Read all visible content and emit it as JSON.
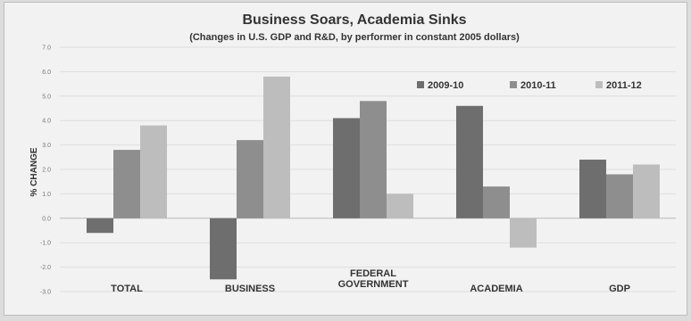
{
  "chart_data": {
    "type": "bar",
    "title": "Business Soars, Academia Sinks",
    "subtitle": "(Changes in U.S. GDP and R&D, by performer in constant 2005 dollars)",
    "ylabel": "% CHANGE",
    "xlabel": "",
    "ylim": [
      -3.0,
      7.0
    ],
    "yticks": [
      "7.0",
      "6.0",
      "5.0",
      "4.0",
      "3.0",
      "2.0",
      "1.0",
      "0.0",
      "-1.0",
      "-2.0",
      "-3.0"
    ],
    "categories": [
      "TOTAL",
      "BUSINESS",
      "FEDERAL GOVERNMENT",
      "ACADEMIA",
      "GDP"
    ],
    "series": [
      {
        "name": "2009-10",
        "color": "#6e6e6e",
        "values": [
          -0.6,
          -2.5,
          4.1,
          4.6,
          2.4
        ]
      },
      {
        "name": "2010-11",
        "color": "#8e8e8e",
        "values": [
          2.8,
          3.2,
          4.8,
          1.3,
          1.8
        ]
      },
      {
        "name": "2011-12",
        "color": "#bdbdbd",
        "values": [
          3.8,
          5.8,
          1.0,
          -1.2,
          2.2
        ]
      }
    ],
    "legend": "top-right",
    "grid": true
  }
}
